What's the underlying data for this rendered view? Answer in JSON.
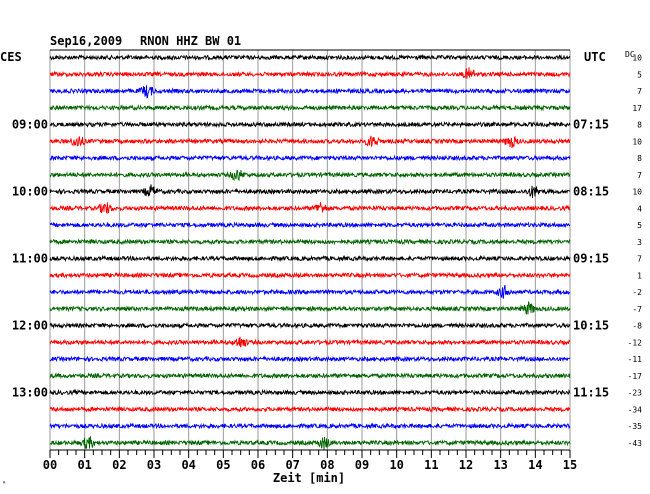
{
  "header": {
    "date": "Sep16,2009",
    "station": "RNON HHZ BW 01",
    "left_tz": "CES",
    "right_tz": "UTC",
    "dc_label": "DC"
  },
  "chart_data": {
    "type": "line",
    "title": "Sep16,2009  RNON HHZ BW 01",
    "xlabel": "Zeit [min]",
    "x_ticks": [
      "00",
      "01",
      "02",
      "03",
      "04",
      "05",
      "06",
      "07",
      "08",
      "09",
      "10",
      "11",
      "12",
      "13",
      "14",
      "15"
    ],
    "xlim": [
      0,
      15
    ],
    "grid": true,
    "trace_colors": [
      "#000000",
      "#ff0000",
      "#0000ff",
      "#006400"
    ],
    "left_hour_labels": [
      {
        "row": 4,
        "label": "09:00"
      },
      {
        "row": 8,
        "label": "10:00"
      },
      {
        "row": 12,
        "label": "11:00"
      },
      {
        "row": 16,
        "label": "12:00"
      },
      {
        "row": 20,
        "label": "13:00"
      }
    ],
    "right_time_labels": [
      {
        "row": 4,
        "label": "07:15"
      },
      {
        "row": 8,
        "label": "08:15"
      },
      {
        "row": 12,
        "label": "09:15"
      },
      {
        "row": 16,
        "label": "10:15"
      },
      {
        "row": 20,
        "label": "11:15"
      }
    ],
    "dc_offsets": [
      "10",
      "5",
      "7",
      "17",
      "8",
      "10",
      "8",
      "7",
      "10",
      "4",
      "5",
      "3",
      "7",
      "1",
      "-2",
      "-7",
      "-8",
      "-12",
      "-11",
      "-17",
      "-23",
      "-34",
      "-35",
      "-43"
    ],
    "traces": [
      {
        "row": 0,
        "color": "#000000",
        "events": []
      },
      {
        "row": 1,
        "color": "#ff0000",
        "events": [
          12.1
        ]
      },
      {
        "row": 2,
        "color": "#0000ff",
        "events": [
          2.8
        ]
      },
      {
        "row": 3,
        "color": "#006400",
        "events": []
      },
      {
        "row": 4,
        "color": "#000000",
        "events": []
      },
      {
        "row": 5,
        "color": "#ff0000",
        "events": [
          0.8,
          9.3,
          13.3
        ]
      },
      {
        "row": 6,
        "color": "#0000ff",
        "events": []
      },
      {
        "row": 7,
        "color": "#006400",
        "events": [
          5.4
        ]
      },
      {
        "row": 8,
        "color": "#000000",
        "events": [
          2.9,
          13.95
        ]
      },
      {
        "row": 9,
        "color": "#ff0000",
        "events": [
          1.6,
          7.8
        ]
      },
      {
        "row": 10,
        "color": "#0000ff",
        "events": []
      },
      {
        "row": 11,
        "color": "#006400",
        "events": []
      },
      {
        "row": 12,
        "color": "#000000",
        "events": []
      },
      {
        "row": 13,
        "color": "#ff0000",
        "events": []
      },
      {
        "row": 14,
        "color": "#0000ff",
        "events": [
          13.1
        ]
      },
      {
        "row": 15,
        "color": "#006400",
        "events": [
          13.8
        ]
      },
      {
        "row": 16,
        "color": "#000000",
        "events": []
      },
      {
        "row": 17,
        "color": "#ff0000",
        "events": [
          5.5
        ]
      },
      {
        "row": 18,
        "color": "#0000ff",
        "events": []
      },
      {
        "row": 19,
        "color": "#006400",
        "events": []
      },
      {
        "row": 20,
        "color": "#000000",
        "events": []
      },
      {
        "row": 21,
        "color": "#ff0000",
        "events": []
      },
      {
        "row": 22,
        "color": "#0000ff",
        "events": []
      },
      {
        "row": 23,
        "color": "#006400",
        "events": [
          1.1,
          7.9
        ]
      }
    ]
  }
}
